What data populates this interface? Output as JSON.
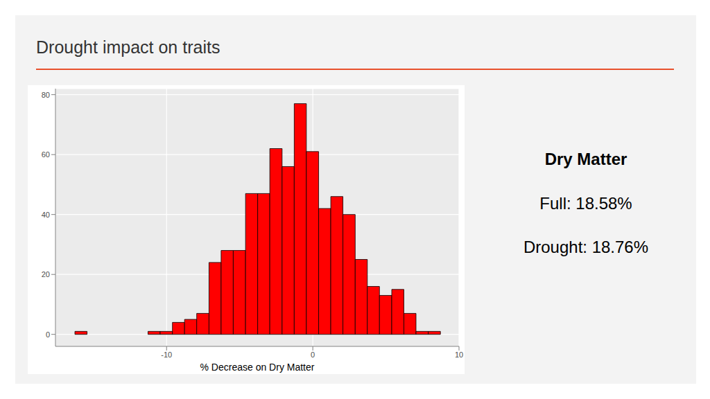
{
  "chart_data": {
    "type": "histogram",
    "title": "Drought impact on traits",
    "xlabel": "% Decrease on Dry Matter",
    "bins": [
      -16.27,
      -15.44,
      -14.6,
      -13.77,
      -12.94,
      -12.1,
      -11.27,
      -10.44,
      -9.6,
      -8.77,
      -7.94,
      -7.1,
      -6.27,
      -5.44,
      -4.6,
      -3.77,
      -2.94,
      -2.1,
      -1.27,
      -0.44,
      0.4,
      1.23,
      2.06,
      2.9,
      3.73,
      4.56,
      5.4,
      6.23,
      7.06,
      7.9,
      8.73
    ],
    "counts": [
      1,
      0,
      0,
      0,
      0,
      0,
      1,
      1,
      4,
      5,
      7,
      24,
      28,
      28,
      47,
      47,
      62,
      56,
      77,
      61,
      42,
      46,
      40,
      25,
      16,
      13,
      15,
      7,
      1,
      1
    ],
    "color": "#ff0000",
    "xlim": [
      -17.6,
      10
    ],
    "ylim": [
      -4,
      82
    ],
    "xticks": [
      -10,
      0,
      10
    ],
    "yticks": [
      0,
      20,
      40,
      60,
      80
    ],
    "grid": true,
    "annotations": [
      "Dry Matter",
      "Full: 18.58%",
      "Drought: 18.76%"
    ]
  }
}
